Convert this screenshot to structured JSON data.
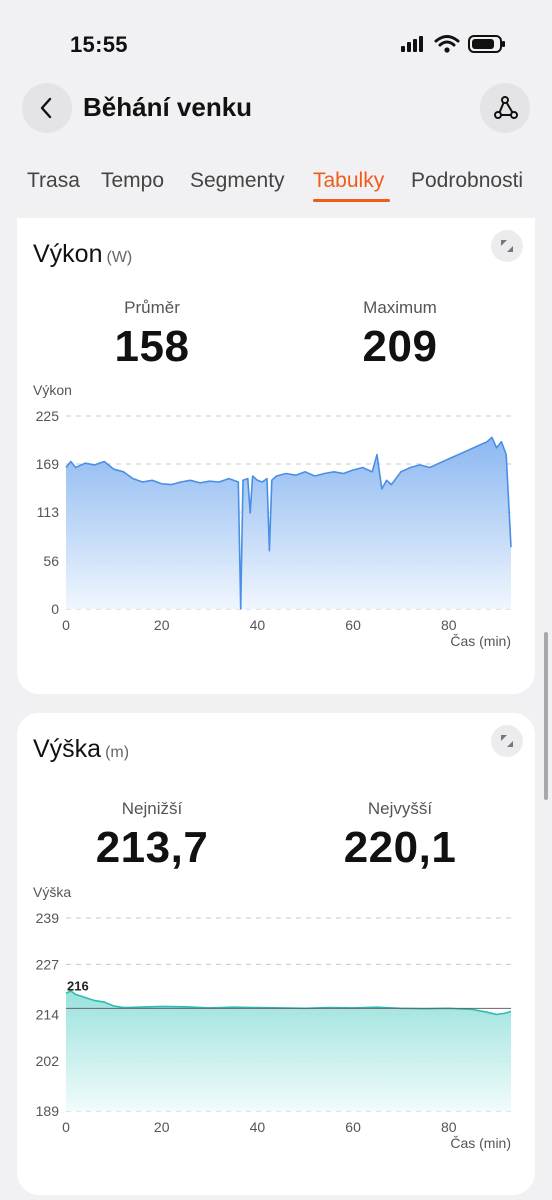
{
  "status": {
    "time": "15:55"
  },
  "header": {
    "title": "Běhání venku",
    "back_icon": "chevron-left-icon",
    "route_icon": "route-icon"
  },
  "tabs": [
    {
      "label": "Trasa",
      "active": false
    },
    {
      "label": "Tempo",
      "active": false
    },
    {
      "label": "Segmenty",
      "active": false
    },
    {
      "label": "Tabulky",
      "active": true
    },
    {
      "label": "Podrobnosti",
      "active": false
    }
  ],
  "colors": {
    "accent": "#ef5b1a",
    "power_line": "#4a8fe6",
    "altitude_line": "#2cbcb4"
  },
  "power": {
    "title": "Výkon",
    "unit": "(W)",
    "stat1": {
      "label": "Průměr",
      "value": "158"
    },
    "stat2": {
      "label": "Maximum",
      "value": "209"
    }
  },
  "altitude": {
    "title": "Výška",
    "unit": "(m)",
    "stat1": {
      "label": "Nejnižší",
      "value": "213,7"
    },
    "stat2": {
      "label": "Nejvyšší",
      "value": "220,1"
    }
  },
  "chart_data": [
    {
      "type": "area",
      "ylabel": "Výkon",
      "xlabel": "Čas (min)",
      "yticks": [
        0,
        56,
        113,
        169,
        225
      ],
      "xticks": [
        0,
        20,
        40,
        60,
        80
      ],
      "ylim": [
        0,
        225
      ],
      "xlim": [
        0,
        93
      ],
      "grid": true,
      "series": [
        {
          "x": [
            0,
            1,
            2,
            4,
            6,
            8,
            10,
            12,
            14,
            16,
            18,
            20,
            22,
            24,
            26,
            28,
            30,
            32,
            34,
            35,
            36,
            36.5,
            37,
            38,
            38.5,
            39,
            40,
            41,
            42,
            42.5,
            43,
            44,
            46,
            48,
            50,
            52,
            54,
            56,
            58,
            60,
            62,
            64,
            65,
            66,
            67,
            68,
            70,
            72,
            74,
            76,
            78,
            80,
            82,
            84,
            86,
            88,
            89,
            90,
            91,
            92,
            93
          ],
          "y": [
            165,
            172,
            165,
            170,
            168,
            172,
            163,
            160,
            152,
            148,
            150,
            146,
            145,
            148,
            150,
            147,
            149,
            148,
            152,
            150,
            148,
            0,
            150,
            152,
            112,
            155,
            150,
            148,
            152,
            68,
            150,
            155,
            158,
            156,
            160,
            155,
            158,
            160,
            158,
            162,
            165,
            160,
            180,
            140,
            150,
            145,
            160,
            165,
            168,
            165,
            170,
            175,
            180,
            185,
            190,
            195,
            200,
            188,
            195,
            180,
            72
          ]
        }
      ]
    },
    {
      "type": "area",
      "ylabel": "Výška",
      "xlabel": "Čas (min)",
      "yticks": [
        189,
        202,
        214,
        227,
        239
      ],
      "xticks": [
        0,
        20,
        40,
        60,
        80
      ],
      "ylim": [
        189,
        239
      ],
      "xlim": [
        0,
        93
      ],
      "grid": true,
      "annotation": "216",
      "series": [
        {
          "x": [
            0,
            1,
            2,
            4,
            6,
            8,
            10,
            12,
            15,
            20,
            25,
            30,
            35,
            40,
            45,
            50,
            55,
            60,
            65,
            70,
            75,
            80,
            85,
            88,
            90,
            92,
            93
          ],
          "y": [
            219.5,
            220.1,
            219.2,
            218.4,
            217.6,
            217.2,
            216.2,
            215.8,
            215.9,
            216.1,
            216.0,
            215.7,
            215.9,
            215.8,
            215.7,
            215.6,
            215.8,
            215.7,
            215.9,
            215.6,
            215.5,
            215.6,
            215.3,
            214.6,
            214.0,
            214.4,
            214.8
          ]
        }
      ]
    }
  ]
}
